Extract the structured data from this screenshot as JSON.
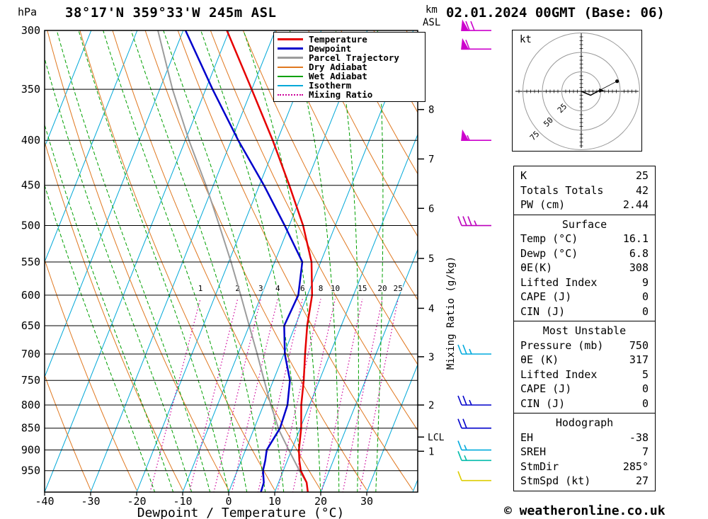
{
  "header": {
    "pressure_unit": "hPa",
    "title": "38°17'N 359°33'W 245m ASL",
    "km_label": "km",
    "asl_label": "ASL",
    "datetime": "02.01.2024 00GMT (Base: 06)"
  },
  "legend": {
    "items": [
      {
        "label": "Temperature",
        "color": "#e60000",
        "style": "solid",
        "weight": 3
      },
      {
        "label": "Dewpoint",
        "color": "#0000cc",
        "style": "solid",
        "weight": 3
      },
      {
        "label": "Parcel Trajectory",
        "color": "#9c9c9c",
        "style": "solid",
        "weight": 3
      },
      {
        "label": "Dry Adiabat",
        "color": "#e07820",
        "style": "solid",
        "weight": 2
      },
      {
        "label": "Wet Adiabat",
        "color": "#00a000",
        "style": "solid",
        "weight": 2
      },
      {
        "label": "Isotherm",
        "color": "#00a8d8",
        "style": "solid",
        "weight": 2
      },
      {
        "label": "Mixing Ratio",
        "color": "#cc0099",
        "style": "dotted",
        "weight": 2
      }
    ]
  },
  "axes": {
    "xlabel": "Dewpoint / Temperature (°C)",
    "mixing_ratio_label": "Mixing Ratio (g/kg)",
    "lcl_label": "LCL",
    "pressure_ticks": [
      300,
      350,
      400,
      450,
      500,
      550,
      600,
      650,
      700,
      750,
      800,
      850,
      900,
      950
    ],
    "temp_ticks": [
      -40,
      -30,
      -20,
      -10,
      0,
      10,
      20,
      30
    ],
    "km_ticks": [
      8,
      7,
      6,
      5,
      4,
      3,
      2,
      1
    ]
  },
  "chart_data": {
    "type": "skewt_sounding",
    "title": "38°17'N 359°33'W 245m ASL",
    "valid": "02.01.2024 00GMT (Base: 06)",
    "pressure_range_hpa": [
      300,
      1005
    ],
    "temp_axis_range_c": [
      -40,
      40
    ],
    "mixing_ratio_gkg": [
      1,
      2,
      3,
      4,
      6,
      8,
      10,
      15,
      20,
      25
    ],
    "lcl_pressure_hpa": 870,
    "temperature_profile_p_t": [
      [
        1005,
        17.2
      ],
      [
        980,
        16.1
      ],
      [
        950,
        13.8
      ],
      [
        925,
        12.6
      ],
      [
        900,
        11.6
      ],
      [
        850,
        10.2
      ],
      [
        800,
        8.2
      ],
      [
        750,
        6.6
      ],
      [
        700,
        4.6
      ],
      [
        650,
        2.6
      ],
      [
        600,
        1.0
      ],
      [
        550,
        -2.0
      ],
      [
        500,
        -7.0
      ],
      [
        450,
        -13.5
      ],
      [
        400,
        -21.0
      ],
      [
        350,
        -30.0
      ],
      [
        300,
        -40.5
      ]
    ],
    "dewpoint_profile_p_t": [
      [
        1005,
        7.0
      ],
      [
        980,
        6.8
      ],
      [
        950,
        5.6
      ],
      [
        925,
        5.2
      ],
      [
        900,
        4.6
      ],
      [
        850,
        5.6
      ],
      [
        800,
        5.2
      ],
      [
        750,
        3.6
      ],
      [
        700,
        0.2
      ],
      [
        650,
        -2.4
      ],
      [
        600,
        -2.0
      ],
      [
        550,
        -4.0
      ],
      [
        500,
        -11.0
      ],
      [
        450,
        -19.0
      ],
      [
        400,
        -28.5
      ],
      [
        350,
        -38.5
      ],
      [
        300,
        -49.5
      ]
    ],
    "parcel_profile_p_t": [
      [
        980,
        16.1
      ],
      [
        950,
        13.5
      ],
      [
        900,
        9.4
      ],
      [
        855,
        5.6
      ],
      [
        800,
        1.6
      ],
      [
        750,
        -2.0
      ],
      [
        700,
        -5.8
      ],
      [
        650,
        -10.0
      ],
      [
        600,
        -14.5
      ],
      [
        550,
        -19.5
      ],
      [
        500,
        -25.2
      ],
      [
        450,
        -31.6
      ],
      [
        400,
        -39.2
      ],
      [
        350,
        -47.2
      ],
      [
        300,
        -55.5
      ]
    ],
    "wind_barbs": [
      {
        "p": 300,
        "color": "#cc00cc",
        "flag": 1,
        "full": 2,
        "half": 0
      },
      {
        "p": 315,
        "color": "#cc00cc",
        "flag": 1,
        "full": 1,
        "half": 0
      },
      {
        "p": 400,
        "color": "#cc00cc",
        "flag": 1,
        "full": 0,
        "half": 1
      },
      {
        "p": 500,
        "color": "#bb00bb",
        "flag": 0,
        "full": 3,
        "half": 1
      },
      {
        "p": 700,
        "color": "#00aadd",
        "flag": 0,
        "full": 2,
        "half": 1
      },
      {
        "p": 800,
        "color": "#0000cc",
        "flag": 0,
        "full": 2,
        "half": 1
      },
      {
        "p": 850,
        "color": "#0000cc",
        "flag": 0,
        "full": 2,
        "half": 0
      },
      {
        "p": 900,
        "color": "#00aadd",
        "flag": 0,
        "full": 1,
        "half": 1
      },
      {
        "p": 925,
        "color": "#00bbaa",
        "flag": 0,
        "full": 1,
        "half": 1
      },
      {
        "p": 975,
        "color": "#ddcc00",
        "flag": 0,
        "full": 1,
        "half": 0
      }
    ],
    "colors": {
      "temperature": "#e60000",
      "dewpoint": "#0000cc",
      "parcel": "#9c9c9c",
      "dry_adiabat": "#e07820",
      "wet_adiabat": "#00a000",
      "isotherm": "#00a8d8",
      "mixing_ratio": "#cc0099"
    }
  },
  "hodograph": {
    "unit_label": "kt",
    "rings_kt": [
      25,
      50,
      75
    ],
    "trace_kt_uv": [
      [
        0,
        0
      ],
      [
        12,
        -5
      ],
      [
        23,
        1
      ]
    ],
    "storm_motion_kt_uv": [
      46,
      13
    ]
  },
  "table": {
    "indices": [
      {
        "label": "K",
        "value": "25"
      },
      {
        "label": "Totals Totals",
        "value": "42"
      },
      {
        "label": "PW (cm)",
        "value": "2.44"
      }
    ],
    "surface": {
      "title": "Surface",
      "rows": [
        {
          "label": "Temp (°C)",
          "value": "16.1"
        },
        {
          "label": "Dewp (°C)",
          "value": "6.8"
        },
        {
          "label": "θE(K)",
          "value": "308"
        },
        {
          "label": "Lifted Index",
          "value": "9"
        },
        {
          "label": "CAPE (J)",
          "value": "0"
        },
        {
          "label": "CIN (J)",
          "value": "0"
        }
      ]
    },
    "most_unstable": {
      "title": "Most Unstable",
      "rows": [
        {
          "label": "Pressure (mb)",
          "value": "750"
        },
        {
          "label": "θE (K)",
          "value": "317"
        },
        {
          "label": "Lifted Index",
          "value": "5"
        },
        {
          "label": "CAPE (J)",
          "value": "0"
        },
        {
          "label": "CIN (J)",
          "value": "0"
        }
      ]
    },
    "hodograph_stats": {
      "title": "Hodograph",
      "rows": [
        {
          "label": "EH",
          "value": "-38"
        },
        {
          "label": "SREH",
          "value": "7"
        },
        {
          "label": "StmDir",
          "value": "285°"
        },
        {
          "label": "StmSpd (kt)",
          "value": "27"
        }
      ]
    }
  },
  "footer": {
    "copyright": "© weatheronline.co.uk"
  }
}
